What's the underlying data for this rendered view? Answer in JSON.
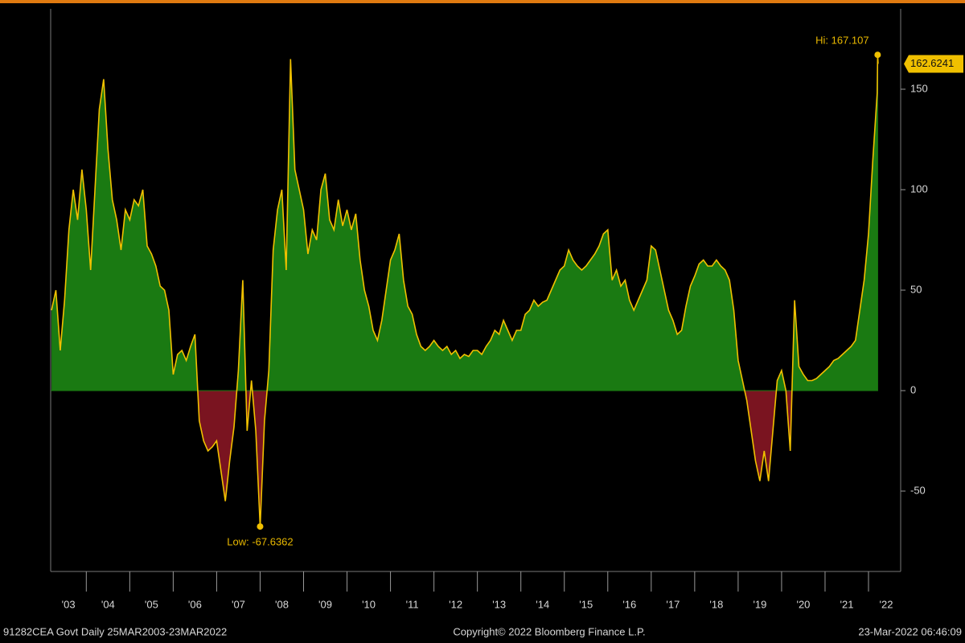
{
  "chart_data": {
    "type": "area",
    "high_label": "Hi: 167.107",
    "low_label": "Low: -67.6362",
    "footer_left": "91282CEA Govt  Daily 25MAR2003-23MAR2022",
    "footer_center": "Copyright© 2022 Bloomberg Finance L.P.",
    "footer_right": "23-Mar-2022 06:46:09",
    "categories": [
      "'03",
      "'04",
      "'05",
      "'06",
      "'07",
      "'08",
      "'09",
      "'10",
      "'11",
      "'12",
      "'13",
      "'14",
      "'15",
      "'16",
      "'17",
      "'18",
      "'19",
      "'20",
      "'21",
      "'22"
    ],
    "xlim": [
      2003.18,
      2022.74
    ],
    "xticks": [
      2004,
      2005,
      2006,
      2007,
      2008,
      2009,
      2010,
      2011,
      2012,
      2013,
      2014,
      2015,
      2016,
      2017,
      2018,
      2019,
      2020,
      2021,
      2022
    ],
    "ylim": [
      -90,
      190
    ],
    "yticks": [
      -50,
      0,
      50,
      100,
      150
    ],
    "line_color": "#f0c000",
    "positive_color": "#1a7a12",
    "negative_color": "#7a1420",
    "x": [
      2003.2,
      2003.3,
      2003.4,
      2003.5,
      2003.6,
      2003.7,
      2003.8,
      2003.9,
      2004.0,
      2004.1,
      2004.2,
      2004.3,
      2004.4,
      2004.5,
      2004.6,
      2004.7,
      2004.8,
      2004.9,
      2005.0,
      2005.1,
      2005.2,
      2005.3,
      2005.4,
      2005.5,
      2005.6,
      2005.7,
      2005.8,
      2005.9,
      2006.0,
      2006.1,
      2006.2,
      2006.3,
      2006.4,
      2006.5,
      2006.6,
      2006.7,
      2006.8,
      2006.9,
      2007.0,
      2007.1,
      2007.2,
      2007.3,
      2007.4,
      2007.5,
      2007.6,
      2007.7,
      2007.8,
      2007.9,
      2008.0,
      2008.1,
      2008.2,
      2008.3,
      2008.4,
      2008.5,
      2008.6,
      2008.7,
      2008.8,
      2008.9,
      2009.0,
      2009.1,
      2009.2,
      2009.3,
      2009.4,
      2009.5,
      2009.6,
      2009.7,
      2009.8,
      2009.9,
      2010.0,
      2010.1,
      2010.2,
      2010.3,
      2010.4,
      2010.5,
      2010.6,
      2010.7,
      2010.8,
      2010.9,
      2011.0,
      2011.1,
      2011.2,
      2011.3,
      2011.4,
      2011.5,
      2011.6,
      2011.7,
      2011.8,
      2011.9,
      2012.0,
      2012.1,
      2012.2,
      2012.3,
      2012.4,
      2012.5,
      2012.6,
      2012.7,
      2012.8,
      2012.9,
      2013.0,
      2013.1,
      2013.2,
      2013.3,
      2013.4,
      2013.5,
      2013.6,
      2013.7,
      2013.8,
      2013.9,
      2014.0,
      2014.1,
      2014.2,
      2014.3,
      2014.4,
      2014.5,
      2014.6,
      2014.7,
      2014.8,
      2014.9,
      2015.0,
      2015.1,
      2015.2,
      2015.3,
      2015.4,
      2015.5,
      2015.6,
      2015.7,
      2015.8,
      2015.9,
      2016.0,
      2016.1,
      2016.2,
      2016.3,
      2016.4,
      2016.5,
      2016.6,
      2016.7,
      2016.8,
      2016.9,
      2017.0,
      2017.1,
      2017.2,
      2017.3,
      2017.4,
      2017.5,
      2017.6,
      2017.7,
      2017.8,
      2017.9,
      2018.0,
      2018.1,
      2018.2,
      2018.3,
      2018.4,
      2018.5,
      2018.6,
      2018.7,
      2018.8,
      2018.9,
      2019.0,
      2019.1,
      2019.2,
      2019.3,
      2019.4,
      2019.5,
      2019.6,
      2019.7,
      2019.8,
      2019.9,
      2020.0,
      2020.1,
      2020.2,
      2020.3,
      2020.4,
      2020.5,
      2020.6,
      2020.7,
      2020.8,
      2020.9,
      2021.0,
      2021.1,
      2021.2,
      2021.3,
      2021.4,
      2021.5,
      2021.6,
      2021.7,
      2021.8,
      2021.9,
      2022.0,
      2022.1,
      2022.2,
      2022.21,
      2022.22
    ],
    "values": [
      40,
      50,
      20,
      45,
      80,
      100,
      85,
      110,
      90,
      60,
      100,
      140,
      155,
      120,
      95,
      85,
      70,
      90,
      85,
      95,
      92,
      100,
      72,
      68,
      62,
      52,
      50,
      40,
      8,
      18,
      20,
      15,
      22,
      28,
      -15,
      -25,
      -30,
      -28,
      -25,
      -40,
      -55,
      -35,
      -18,
      10,
      55,
      -20,
      5,
      -20,
      -67.6362,
      -15,
      10,
      70,
      90,
      100,
      60,
      165,
      110,
      100,
      90,
      68,
      80,
      75,
      100,
      108,
      85,
      80,
      95,
      82,
      90,
      80,
      88,
      65,
      50,
      42,
      30,
      25,
      35,
      50,
      65,
      70,
      78,
      55,
      42,
      38,
      28,
      22,
      20,
      22,
      25,
      22,
      20,
      22,
      18,
      20,
      16,
      18,
      17,
      20,
      20,
      18,
      22,
      25,
      30,
      28,
      35,
      30,
      25,
      30,
      30,
      38,
      40,
      45,
      42,
      44,
      45,
      50,
      55,
      60,
      62,
      70,
      65,
      62,
      60,
      62,
      65,
      68,
      72,
      78,
      80,
      55,
      60,
      52,
      55,
      45,
      40,
      45,
      50,
      55,
      72,
      70,
      60,
      50,
      40,
      35,
      28,
      30,
      42,
      52,
      57,
      63,
      65,
      62,
      62,
      65,
      62,
      60,
      55,
      40,
      15,
      5,
      -5,
      -20,
      -35,
      -45,
      -30,
      -45,
      -20,
      5,
      10,
      0,
      -30,
      45,
      12,
      8,
      5,
      5,
      6,
      8,
      10,
      12,
      15,
      16,
      18,
      20,
      22,
      25,
      40,
      55,
      78,
      115,
      148,
      167.107,
      162.6241
    ]
  }
}
